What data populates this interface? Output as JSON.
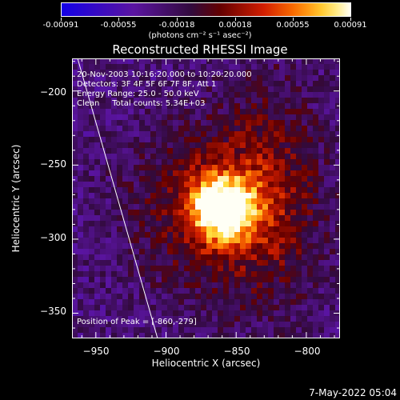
{
  "colorbar": {
    "tick_labels": [
      "-0.00091",
      "-0.00055",
      "-0.00018",
      "0.00018",
      "0.00055",
      "0.00091"
    ],
    "units": "(photons cm⁻² s⁻¹ asec⁻²)"
  },
  "chart_data": {
    "type": "heatmap",
    "title": "Reconstructed RHESSI Image",
    "xlabel": "Heliocentric X (arcsec)",
    "ylabel": "Heliocentric Y (arcsec)",
    "xlim": [
      -967,
      -776
    ],
    "ylim": [
      -367,
      -178
    ],
    "x_ticks": [
      "−950",
      "−900",
      "−850",
      "−800"
    ],
    "y_ticks": [
      "−200",
      "−250",
      "−300",
      "−350"
    ],
    "colorbar_range": [
      -0.00091,
      0.00091
    ],
    "peak_location": [
      -860,
      -279
    ],
    "limb_line": [
      [
        -963,
        -178
      ],
      [
        -906,
        -367
      ]
    ]
  },
  "info": {
    "line1": "20-Nov-2003 10:16:20.000 to 10:20:20.000",
    "line2": "Detectors: 3F 4F 5F 6F 7F 8F, Att 1",
    "line3": "Energy Range: 25.0 - 50.0 keV",
    "line4": "Clean     Total counts: 5.34E+03",
    "peak": "Position of Peak = [-860,-279]"
  },
  "timestamp": "7-May-2022 05:04"
}
